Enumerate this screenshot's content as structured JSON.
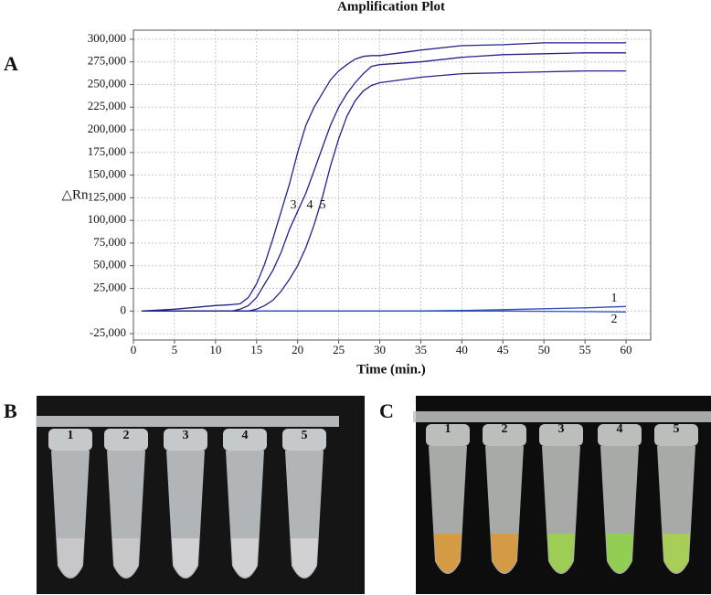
{
  "chart_data": {
    "type": "line",
    "title": "Amplification Plot",
    "x_label": "Time (min.)",
    "y_label": "△Rn",
    "x": [
      1,
      5,
      10,
      12,
      13,
      14,
      15,
      16,
      17,
      18,
      19,
      20,
      21,
      22,
      23,
      24,
      25,
      26,
      27,
      28,
      29,
      30,
      35,
      40,
      45,
      50,
      55,
      60
    ],
    "series": [
      {
        "name": "1",
        "color": "#2f4fbf",
        "values": [
          0,
          0,
          0,
          0,
          0,
          0,
          0,
          0,
          0,
          0,
          0,
          0,
          0,
          0,
          0,
          0,
          0,
          0,
          0,
          0,
          0,
          0,
          200,
          600,
          1500,
          2500,
          3500,
          5000
        ]
      },
      {
        "name": "2",
        "color": "#2f4fbf",
        "values": [
          0,
          0,
          0,
          0,
          0,
          0,
          0,
          0,
          0,
          0,
          0,
          0,
          0,
          0,
          0,
          0,
          0,
          0,
          0,
          0,
          0,
          0,
          0,
          0,
          0,
          -300,
          -600,
          -1000
        ]
      },
      {
        "name": "3",
        "color": "#23238a",
        "values": [
          0,
          2000,
          6000,
          7000,
          8000,
          15000,
          30000,
          52000,
          80000,
          110000,
          140000,
          175000,
          205000,
          225000,
          240000,
          255000,
          265000,
          272000,
          278000,
          281000,
          282000,
          282000,
          288000,
          293000,
          294000,
          296000,
          296000,
          296000
        ]
      },
      {
        "name": "4",
        "color": "#23238a",
        "values": [
          0,
          0,
          0,
          0,
          2000,
          6000,
          15000,
          30000,
          45000,
          65000,
          90000,
          110000,
          130000,
          155000,
          180000,
          205000,
          225000,
          240000,
          252000,
          262000,
          270000,
          272000,
          275000,
          280000,
          283000,
          284000,
          285000,
          285000
        ]
      },
      {
        "name": "5",
        "color": "#23238a",
        "values": [
          0,
          0,
          0,
          0,
          0,
          0,
          2000,
          6000,
          12000,
          22000,
          35000,
          50000,
          70000,
          95000,
          125000,
          160000,
          190000,
          215000,
          232000,
          243000,
          249000,
          252000,
          258000,
          262000,
          263000,
          264000,
          265000,
          265000
        ]
      }
    ],
    "xlim": [
      0,
      63
    ],
    "xticks": [
      0,
      5,
      10,
      15,
      20,
      25,
      30,
      35,
      40,
      45,
      50,
      55,
      60
    ],
    "ylim": [
      -32000,
      310000
    ],
    "yticks": [
      {
        "value": -25000,
        "label": "-25,000"
      },
      0,
      {
        "value": 25000,
        "label": "25,000"
      },
      {
        "value": 50000,
        "label": "50,000"
      },
      {
        "value": 75000,
        "label": "75,000"
      },
      {
        "value": 100000,
        "label": "100,000"
      },
      {
        "value": 125000,
        "label": "125,000"
      },
      {
        "value": 150000,
        "label": "150,000"
      },
      {
        "value": 175000,
        "label": "175,000"
      },
      {
        "value": 200000,
        "label": "200,000"
      },
      {
        "value": 225000,
        "label": "225,000"
      },
      {
        "value": 250000,
        "label": "250,000"
      },
      {
        "value": 275000,
        "label": "275,000"
      },
      {
        "value": 300000,
        "label": "300,000"
      }
    ],
    "grid": true
  },
  "panels": {
    "a": "A",
    "b": "B",
    "c": "C"
  },
  "photo_b": {
    "tube_labels": [
      "1",
      "2",
      "3",
      "4",
      "5"
    ]
  },
  "photo_c": {
    "tube_labels": [
      "1",
      "2",
      "3",
      "4",
      "5"
    ]
  }
}
